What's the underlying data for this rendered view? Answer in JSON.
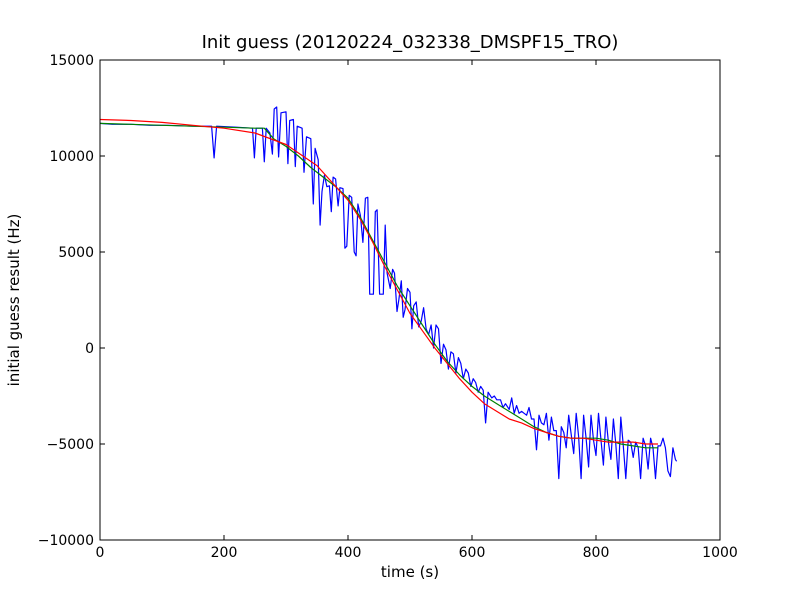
{
  "chart_data": {
    "type": "line",
    "title": "Init guess (20120224_032338_DMSPF15_TRO)",
    "xlabel": "time (s)",
    "ylabel": "initial guess result (Hz)",
    "xlim": [
      0,
      1000
    ],
    "ylim": [
      -10000,
      15000
    ],
    "xticks": [
      0,
      200,
      400,
      600,
      800,
      1000
    ],
    "yticks": [
      -10000,
      -5000,
      0,
      5000,
      10000,
      15000
    ],
    "xtick_labels": [
      "0",
      "200",
      "400",
      "600",
      "800",
      "1000"
    ],
    "ytick_labels": [
      "−10000",
      "−5000",
      "0",
      "5000",
      "10000",
      "15000"
    ],
    "grid": false,
    "legend": "none",
    "series": [
      {
        "color": "#0000ff",
        "points": [
          [
            0,
            11700
          ],
          [
            20,
            11650
          ],
          [
            50,
            11650
          ],
          [
            80,
            11600
          ],
          [
            110,
            11600
          ],
          [
            150,
            11550
          ],
          [
            180,
            11550
          ],
          [
            184,
            9900
          ],
          [
            188,
            11550
          ],
          [
            220,
            11500
          ],
          [
            246,
            11450
          ],
          [
            249,
            9900
          ],
          [
            252,
            11450
          ],
          [
            262,
            11450
          ],
          [
            265,
            9700
          ],
          [
            268,
            11450
          ],
          [
            274,
            11200
          ],
          [
            278,
            10100
          ],
          [
            281,
            12450
          ],
          [
            285,
            12550
          ],
          [
            288,
            9950
          ],
          [
            292,
            12250
          ],
          [
            300,
            12300
          ],
          [
            303,
            9600
          ],
          [
            306,
            11850
          ],
          [
            312,
            11900
          ],
          [
            315,
            9450
          ],
          [
            318,
            11550
          ],
          [
            326,
            11450
          ],
          [
            329,
            9150
          ],
          [
            333,
            11000
          ],
          [
            340,
            10900
          ],
          [
            344,
            7500
          ],
          [
            347,
            10400
          ],
          [
            352,
            9800
          ],
          [
            355,
            6400
          ],
          [
            358,
            8150
          ],
          [
            362,
            9000
          ],
          [
            366,
            8400
          ],
          [
            370,
            8450
          ],
          [
            373,
            7100
          ],
          [
            376,
            8900
          ],
          [
            380,
            8800
          ],
          [
            384,
            7400
          ],
          [
            387,
            8350
          ],
          [
            392,
            8300
          ],
          [
            395,
            5200
          ],
          [
            398,
            5300
          ],
          [
            402,
            7950
          ],
          [
            406,
            7850
          ],
          [
            410,
            5000
          ],
          [
            413,
            4800
          ],
          [
            416,
            7500
          ],
          [
            420,
            6900
          ],
          [
            424,
            5500
          ],
          [
            428,
            7800
          ],
          [
            432,
            7850
          ],
          [
            435,
            2800
          ],
          [
            441,
            2800
          ],
          [
            444,
            7100
          ],
          [
            447,
            7200
          ],
          [
            451,
            2800
          ],
          [
            457,
            2800
          ],
          [
            460,
            6400
          ],
          [
            463,
            3900
          ],
          [
            468,
            3100
          ],
          [
            472,
            4100
          ],
          [
            475,
            3900
          ],
          [
            479,
            1900
          ],
          [
            482,
            2500
          ],
          [
            486,
            3500
          ],
          [
            489,
            1600
          ],
          [
            492,
            2000
          ],
          [
            496,
            3100
          ],
          [
            500,
            2900
          ],
          [
            503,
            1000
          ],
          [
            506,
            2200
          ],
          [
            510,
            2400
          ],
          [
            514,
            1100
          ],
          [
            518,
            1400
          ],
          [
            522,
            2100
          ],
          [
            526,
            1000
          ],
          [
            530,
            700
          ],
          [
            534,
            1200
          ],
          [
            538,
            0
          ],
          [
            542,
            1200
          ],
          [
            546,
            1000
          ],
          [
            550,
            -800
          ],
          [
            554,
            200
          ],
          [
            558,
            -100
          ],
          [
            562,
            -1100
          ],
          [
            566,
            -200
          ],
          [
            570,
            -300
          ],
          [
            574,
            -1300
          ],
          [
            578,
            -500
          ],
          [
            582,
            -800
          ],
          [
            586,
            -1600
          ],
          [
            590,
            -1100
          ],
          [
            594,
            -1300
          ],
          [
            598,
            -2000
          ],
          [
            602,
            -1600
          ],
          [
            606,
            -1800
          ],
          [
            610,
            -2300
          ],
          [
            614,
            -2000
          ],
          [
            618,
            -2200
          ],
          [
            622,
            -3900
          ],
          [
            626,
            -2300
          ],
          [
            632,
            -2600
          ],
          [
            636,
            -2500
          ],
          [
            640,
            -2700
          ],
          [
            646,
            -2700
          ],
          [
            650,
            -3100
          ],
          [
            654,
            -2900
          ],
          [
            660,
            -3200
          ],
          [
            664,
            -2600
          ],
          [
            668,
            -3400
          ],
          [
            672,
            -3000
          ],
          [
            676,
            -3400
          ],
          [
            680,
            -3300
          ],
          [
            684,
            -3400
          ],
          [
            688,
            -3500
          ],
          [
            692,
            -3100
          ],
          [
            696,
            -3700
          ],
          [
            700,
            -3700
          ],
          [
            704,
            -5300
          ],
          [
            708,
            -3500
          ],
          [
            712,
            -3900
          ],
          [
            716,
            -4000
          ],
          [
            720,
            -3400
          ],
          [
            724,
            -4800
          ],
          [
            728,
            -3600
          ],
          [
            732,
            -4300
          ],
          [
            736,
            -4300
          ],
          [
            740,
            -6800
          ],
          [
            744,
            -4100
          ],
          [
            748,
            -4400
          ],
          [
            752,
            -5200
          ],
          [
            756,
            -3500
          ],
          [
            760,
            -4500
          ],
          [
            764,
            -5500
          ],
          [
            768,
            -3400
          ],
          [
            772,
            -4600
          ],
          [
            776,
            -6800
          ],
          [
            780,
            -3500
          ],
          [
            784,
            -4700
          ],
          [
            788,
            -6200
          ],
          [
            792,
            -3500
          ],
          [
            796,
            -4800
          ],
          [
            800,
            -5600
          ],
          [
            804,
            -3400
          ],
          [
            808,
            -4800
          ],
          [
            812,
            -6100
          ],
          [
            816,
            -3600
          ],
          [
            820,
            -4900
          ],
          [
            824,
            -5800
          ],
          [
            828,
            -3700
          ],
          [
            832,
            -5000
          ],
          [
            836,
            -6800
          ],
          [
            840,
            -3600
          ],
          [
            844,
            -5100
          ],
          [
            848,
            -6800
          ],
          [
            852,
            -4800
          ],
          [
            856,
            -4900
          ],
          [
            860,
            -5700
          ],
          [
            864,
            -4900
          ],
          [
            868,
            -5200
          ],
          [
            872,
            -6800
          ],
          [
            876,
            -4700
          ],
          [
            880,
            -5100
          ],
          [
            884,
            -6300
          ],
          [
            888,
            -4700
          ],
          [
            892,
            -5200
          ],
          [
            896,
            -6800
          ],
          [
            900,
            -5100
          ],
          [
            904,
            -5100
          ],
          [
            908,
            -4700
          ],
          [
            912,
            -5200
          ],
          [
            916,
            -6400
          ],
          [
            920,
            -6700
          ],
          [
            924,
            -5200
          ],
          [
            928,
            -5800
          ],
          [
            930,
            -5900
          ]
        ]
      },
      {
        "color": "#008000",
        "points": [
          [
            0,
            11700
          ],
          [
            50,
            11650
          ],
          [
            100,
            11600
          ],
          [
            150,
            11550
          ],
          [
            200,
            11500
          ],
          [
            250,
            11450
          ],
          [
            265,
            11450
          ],
          [
            280,
            10900
          ],
          [
            300,
            10500
          ],
          [
            320,
            10000
          ],
          [
            340,
            9400
          ],
          [
            360,
            8900
          ],
          [
            380,
            8400
          ],
          [
            400,
            7800
          ],
          [
            420,
            6800
          ],
          [
            440,
            5600
          ],
          [
            460,
            4400
          ],
          [
            480,
            3200
          ],
          [
            500,
            2200
          ],
          [
            520,
            1200
          ],
          [
            540,
            200
          ],
          [
            560,
            -700
          ],
          [
            580,
            -1400
          ],
          [
            600,
            -2000
          ],
          [
            620,
            -2500
          ],
          [
            640,
            -2900
          ],
          [
            660,
            -3300
          ],
          [
            680,
            -3700
          ],
          [
            700,
            -4100
          ],
          [
            720,
            -4400
          ],
          [
            740,
            -4600
          ],
          [
            760,
            -4700
          ],
          [
            780,
            -4700
          ],
          [
            800,
            -4700
          ],
          [
            820,
            -4800
          ],
          [
            840,
            -5000
          ],
          [
            860,
            -5100
          ],
          [
            880,
            -5200
          ],
          [
            900,
            -5200
          ]
        ]
      },
      {
        "color": "#ff0000",
        "points": [
          [
            0,
            11900
          ],
          [
            50,
            11850
          ],
          [
            100,
            11750
          ],
          [
            150,
            11600
          ],
          [
            200,
            11450
          ],
          [
            250,
            11200
          ],
          [
            300,
            10600
          ],
          [
            350,
            9500
          ],
          [
            400,
            7700
          ],
          [
            420,
            6700
          ],
          [
            440,
            5500
          ],
          [
            460,
            4200
          ],
          [
            480,
            3000
          ],
          [
            500,
            1800
          ],
          [
            520,
            900
          ],
          [
            540,
            0
          ],
          [
            560,
            -800
          ],
          [
            580,
            -1600
          ],
          [
            600,
            -2300
          ],
          [
            620,
            -2900
          ],
          [
            640,
            -3300
          ],
          [
            660,
            -3700
          ],
          [
            680,
            -3900
          ],
          [
            700,
            -4200
          ],
          [
            720,
            -4400
          ],
          [
            740,
            -4600
          ],
          [
            760,
            -4700
          ],
          [
            780,
            -4700
          ],
          [
            800,
            -4800
          ],
          [
            820,
            -4900
          ],
          [
            840,
            -4900
          ],
          [
            860,
            -4900
          ],
          [
            880,
            -5000
          ],
          [
            900,
            -5000
          ]
        ]
      }
    ]
  }
}
